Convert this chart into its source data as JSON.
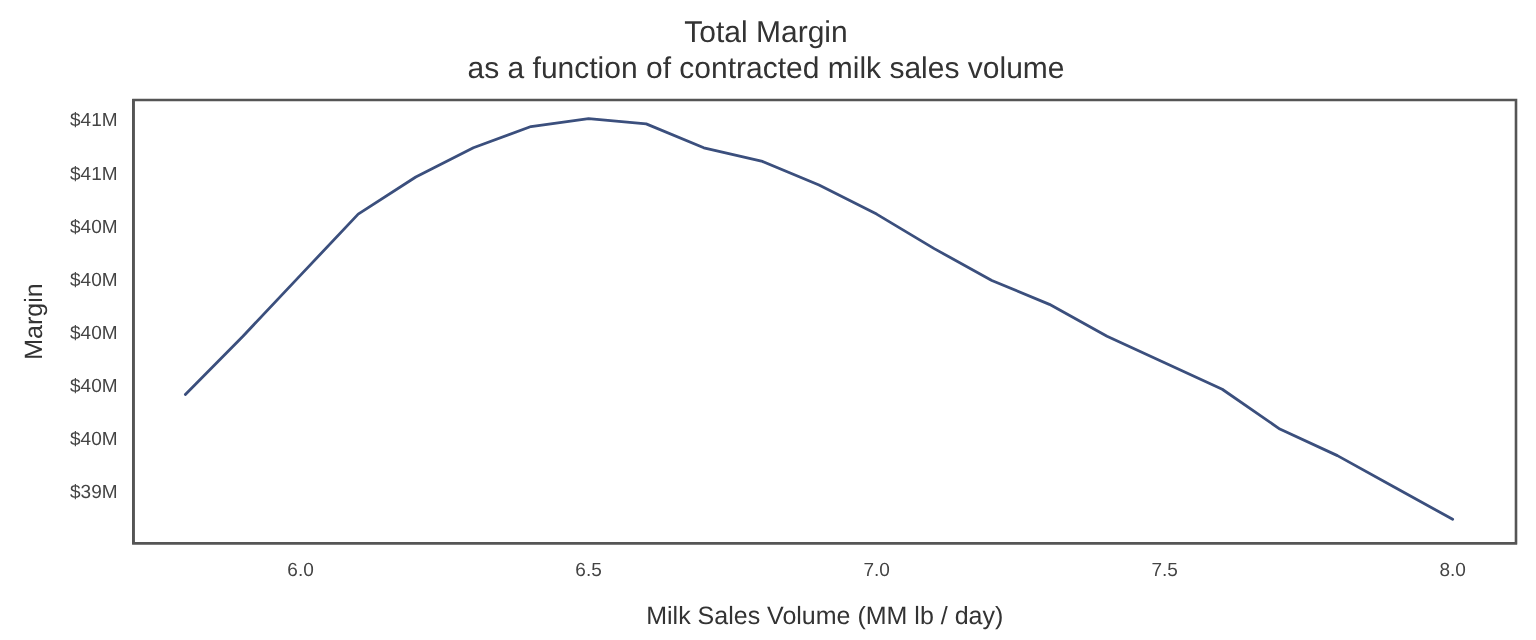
{
  "chart_data": {
    "type": "line",
    "title": [
      "Total Margin",
      "as a function of contracted milk sales volume"
    ],
    "xlabel": "Milk Sales Volume (MM lb / day)",
    "ylabel": "Margin",
    "x": [
      5.8,
      5.9,
      6.0,
      6.1,
      6.2,
      6.3,
      6.4,
      6.5,
      6.6,
      6.7,
      6.8,
      6.9,
      7.0,
      7.1,
      7.2,
      7.3,
      7.4,
      7.5,
      7.6,
      7.7,
      7.8,
      7.9,
      8.0
    ],
    "series": [
      {
        "color": "#3b4f7d",
        "values": [
          39.77,
          39.99,
          40.22,
          40.45,
          40.59,
          40.7,
          40.78,
          40.81,
          40.79,
          40.7,
          40.65,
          40.56,
          40.45,
          40.32,
          40.2,
          40.11,
          39.99,
          39.89,
          39.79,
          39.64,
          39.54,
          39.42,
          39.3
        ]
      }
    ],
    "xlim": [
      5.71,
      8.11
    ],
    "ylim": [
      39.21,
      40.88
    ],
    "xticks": [
      {
        "value": 6,
        "label": "6.0"
      },
      {
        "value": 6.5,
        "label": "6.5"
      },
      {
        "value": 7,
        "label": "7.0"
      },
      {
        "value": 7.5,
        "label": "7.5"
      },
      {
        "value": 8,
        "label": "8.0"
      }
    ],
    "yticks": [
      {
        "value": 39.4,
        "label": "$39M"
      },
      {
        "value": 39.6,
        "label": "$40M"
      },
      {
        "value": 39.8,
        "label": "$40M"
      },
      {
        "value": 40,
        "label": "$40M"
      },
      {
        "value": 40.2,
        "label": "$40M"
      },
      {
        "value": 40.4,
        "label": "$40M"
      },
      {
        "value": 40.6,
        "label": "$41M"
      },
      {
        "value": 40.8,
        "label": "$41M"
      }
    ],
    "grid": false,
    "legend": false,
    "marker": "none",
    "line_style": "solid"
  }
}
